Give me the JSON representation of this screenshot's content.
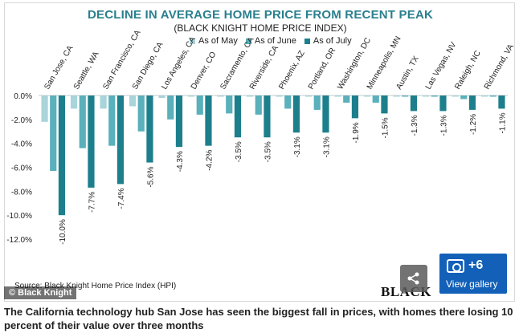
{
  "chart_data": {
    "type": "bar",
    "title": "DECLINE IN AVERAGE HOME PRICE FROM RECENT PEAK",
    "subtitle": "(BLACK KNIGHT HOME PRICE INDEX)",
    "categories": [
      "San Jose, CA",
      "Seattle, WA",
      "San Francisco, CA",
      "San Diego, CA",
      "Los Angeles, CA",
      "Denver, CO",
      "Sacramento, CA",
      "Riverside, CA",
      "Phoenix, AZ",
      "Portland, OR",
      "Washington, DC",
      "Minneapolis, MN",
      "Austin, TX",
      "Las Vegas, NV",
      "Raleigh, NC",
      "Richmond, VA"
    ],
    "series": [
      {
        "name": "As of May",
        "color": "#a8d4da",
        "values": [
          -2.2,
          -1.1,
          -1.1,
          -0.9,
          -0.2,
          -0.1,
          -0.1,
          -0.1,
          -0.1,
          -0.1,
          -0.1,
          -0.1,
          -0.1,
          -0.1,
          -0.1,
          -0.1
        ]
      },
      {
        "name": "As of June",
        "color": "#5ab0bb",
        "values": [
          -6.3,
          -4.4,
          -4.2,
          -3.0,
          -2.0,
          -1.6,
          -1.5,
          -1.6,
          -1.1,
          -1.2,
          -0.6,
          -0.6,
          -0.1,
          -0.1,
          -0.3,
          -0.1
        ]
      },
      {
        "name": "As of July",
        "color": "#1d7f8c",
        "values": [
          -10.0,
          -7.7,
          -7.4,
          -5.6,
          -4.3,
          -4.2,
          -3.5,
          -3.5,
          -3.1,
          -3.1,
          -1.9,
          -1.5,
          -1.3,
          -1.3,
          -1.2,
          -1.1
        ]
      }
    ],
    "data_labels": [
      "-10.0%",
      "-7.7%",
      "-7.4%",
      "-5.6%",
      "-4.3%",
      "-4.2%",
      "-3.5%",
      "-3.5%",
      "-3.1%",
      "-3.1%",
      "-1.9%",
      "-1.5%",
      "-1.3%",
      "-1.3%",
      "-1.2%",
      "-1.1%"
    ],
    "y_ticks": [
      "0.0%",
      "-2.0%",
      "-4.0%",
      "-6.0%",
      "-8.0%",
      "-10.0%",
      "-12.0%"
    ],
    "y_tick_values": [
      0,
      -2,
      -4,
      -6,
      -8,
      -10,
      -12
    ],
    "ylim": [
      -12,
      0
    ],
    "grid": false,
    "legend_position": "top-center"
  },
  "source": "Source: Black Knight Home Price Index (HPI)",
  "copyright": "© Black Knight",
  "logo_text": "BLACK",
  "gallery": {
    "count": "+6",
    "label": "View gallery"
  },
  "share_icon": "share-icon",
  "camera_icon": "camera-icon",
  "caption": "The California technology hub San Jose has seen the biggest fall in prices, with homes there losing 10 percent of their value over three months"
}
